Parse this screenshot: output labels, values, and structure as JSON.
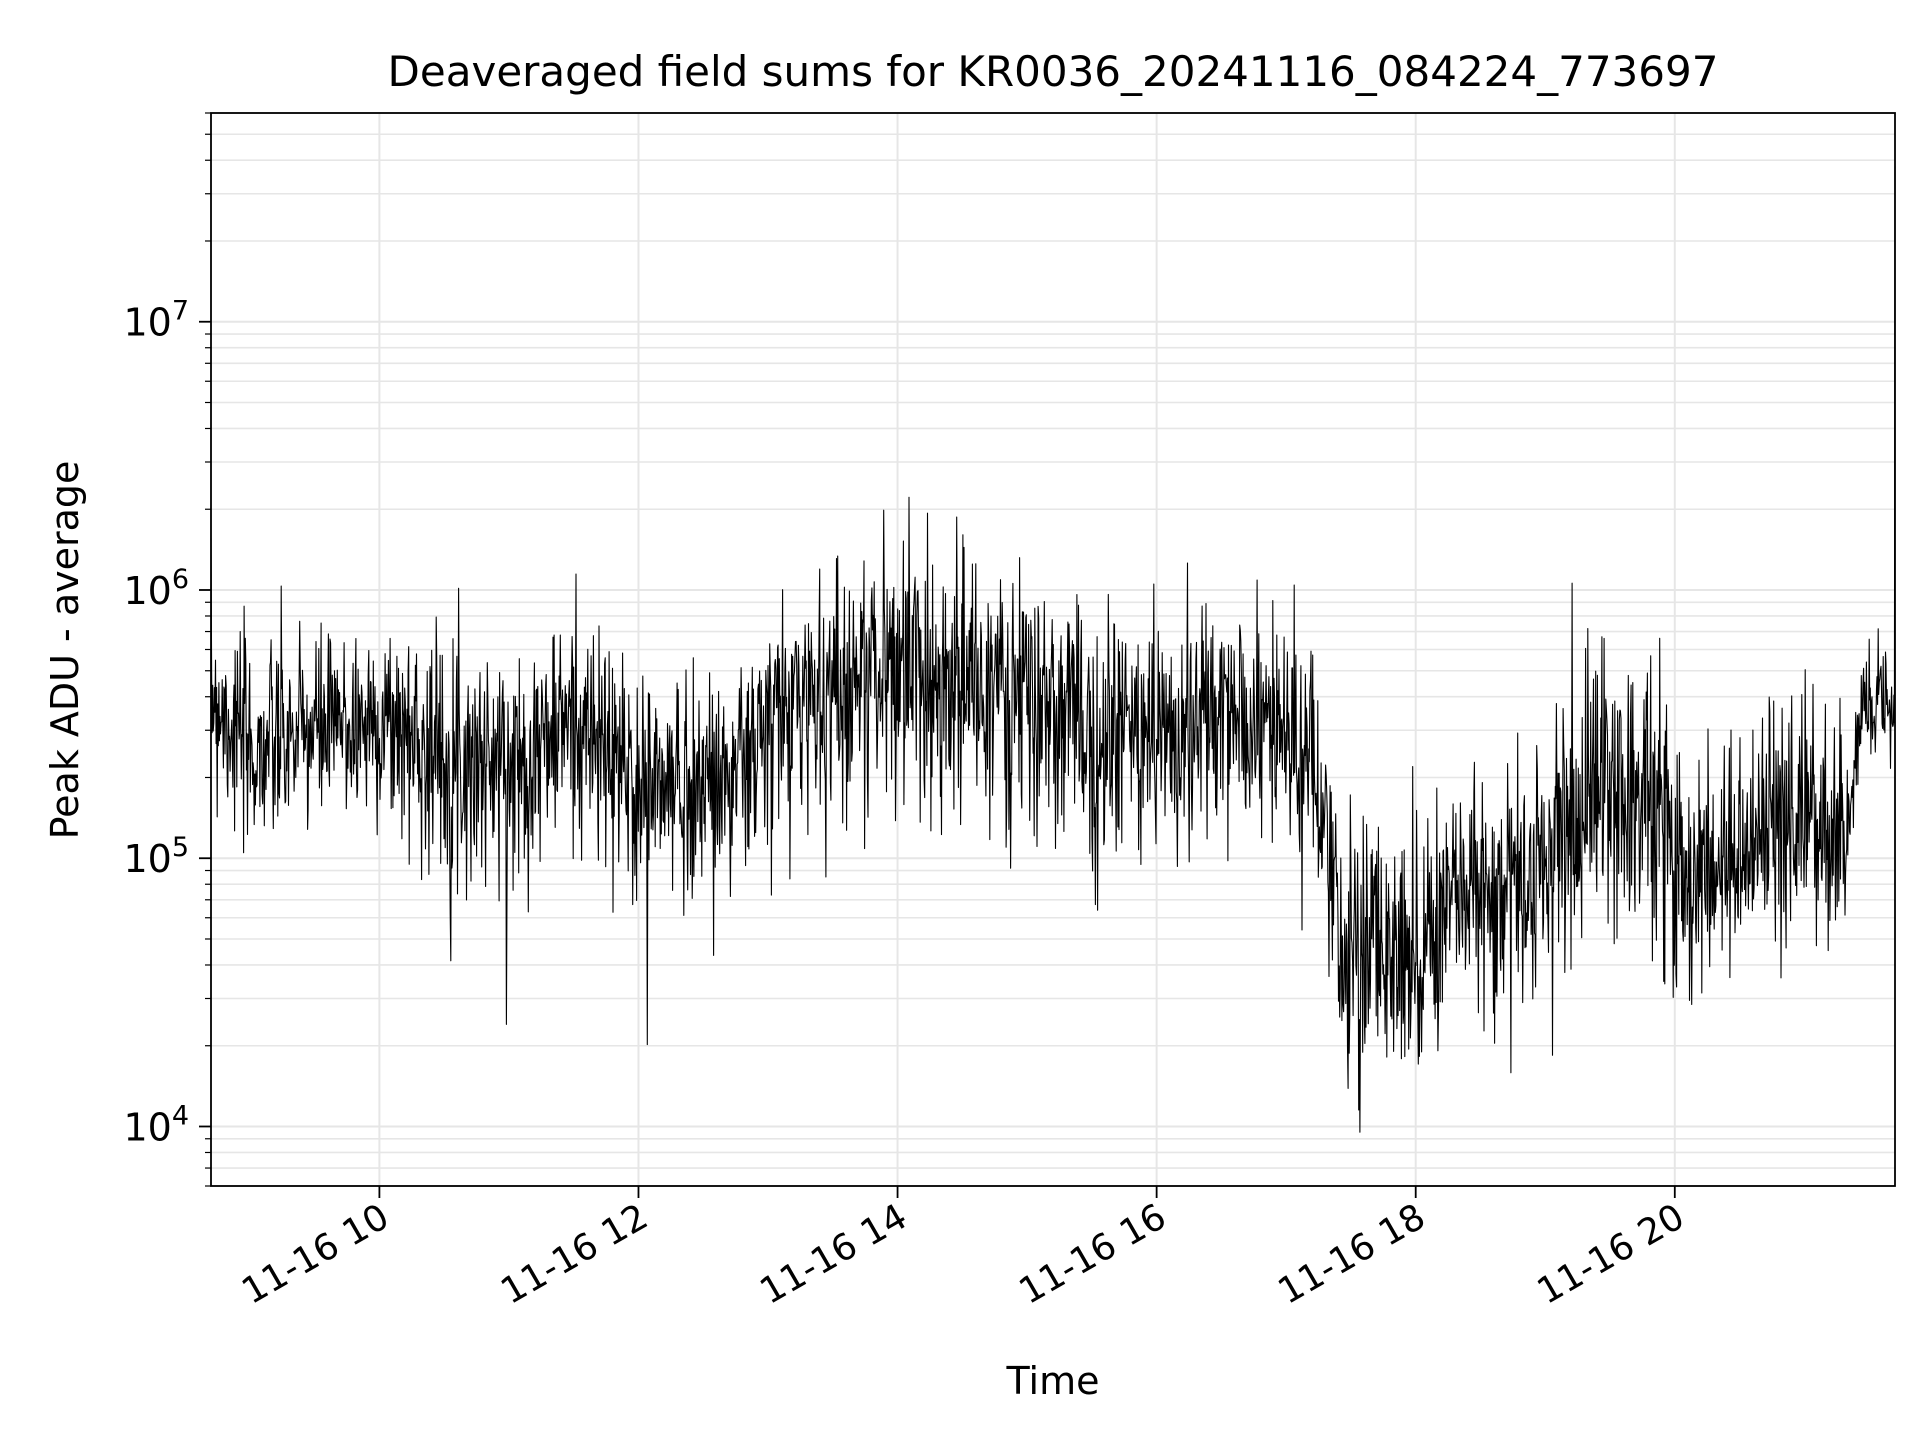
{
  "chart_data": {
    "type": "line",
    "title": "Deaveraged field sums for KR0036_20241116_084224_773697",
    "xlabel": "Time",
    "ylabel": "Peak ADU - average",
    "x_ticks": [
      "11-16 10",
      "11-16 12",
      "11-16 14",
      "11-16 16",
      "11-16 18",
      "11-16 20"
    ],
    "x_tick_hours": [
      10,
      12,
      14,
      16,
      18,
      20
    ],
    "xlim": [
      "2024-11-16 08:42",
      "2024-11-16 21:42"
    ],
    "y_scale": "log",
    "ylim": [
      6000,
      60000000
    ],
    "y_ticks": [
      {
        "base": "10",
        "exp": "4",
        "value": 10000
      },
      {
        "base": "10",
        "exp": "5",
        "value": 100000
      },
      {
        "base": "10",
        "exp": "6",
        "value": 1000000
      },
      {
        "base": "10",
        "exp": "7",
        "value": 10000000
      }
    ],
    "grid": true,
    "line_color": "#000000",
    "grid_color": "#e6e6e6",
    "series": [
      {
        "x_hours": [
          8.7,
          9.0,
          9.5,
          10.0,
          10.5,
          11.0,
          11.5,
          12.0,
          12.5,
          12.8,
          13.2,
          13.6,
          14.0,
          14.4,
          14.8,
          15.2,
          15.6,
          16.0,
          16.5,
          17.0,
          17.2,
          17.4,
          17.7,
          18.0,
          18.3,
          18.6,
          18.9,
          19.2,
          19.5,
          19.8,
          20.1,
          20.4,
          20.7,
          21.0,
          21.3,
          21.45,
          21.7
        ],
        "median": [
          450000,
          250000,
          300000,
          330000,
          250000,
          220000,
          350000,
          180000,
          190000,
          220000,
          400000,
          480000,
          560000,
          480000,
          420000,
          350000,
          280000,
          300000,
          330000,
          320000,
          220000,
          50000,
          45000,
          50000,
          70000,
          80000,
          75000,
          150000,
          200000,
          190000,
          80000,
          100000,
          110000,
          130000,
          120000,
          320000,
          450000
        ],
        "upper_envelope": [
          1000000,
          700000,
          800000,
          900000,
          800000,
          700000,
          900000,
          700000,
          600000,
          700000,
          1300000,
          1500000,
          1900000,
          1800000,
          1400000,
          1200000,
          1100000,
          1000000,
          1100000,
          900000,
          700000,
          200000,
          150000,
          200000,
          200000,
          250000,
          250000,
          800000,
          800000,
          800000,
          300000,
          350000,
          500000,
          600000,
          600000,
          700000,
          900000
        ],
        "lower_envelope": [
          120000,
          80000,
          100000,
          110000,
          70000,
          60000,
          90000,
          45000,
          60000,
          60000,
          80000,
          100000,
          120000,
          110000,
          90000,
          80000,
          70000,
          90000,
          80000,
          90000,
          50000,
          12000,
          12000,
          12000,
          20000,
          20000,
          20000,
          35000,
          40000,
          30000,
          20000,
          30000,
          35000,
          40000,
          35000,
          200000,
          250000
        ]
      }
    ]
  }
}
